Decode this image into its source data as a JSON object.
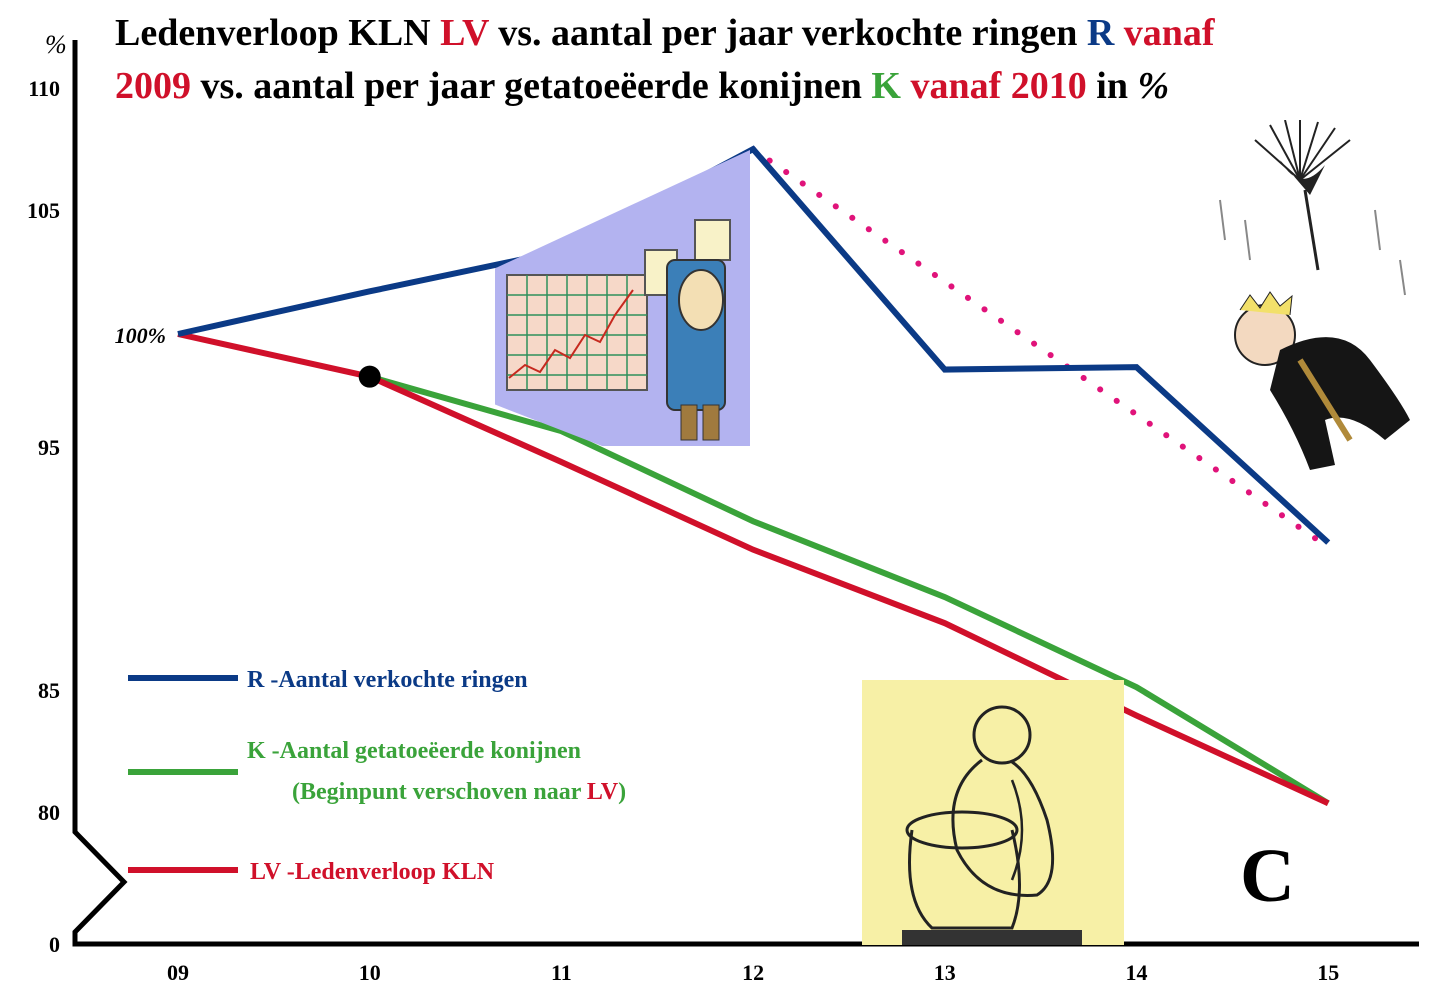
{
  "chart_data": {
    "type": "line",
    "title_line1": [
      {
        "text": "Ledenverloop KLN ",
        "color": "#000000"
      },
      {
        "text": "LV",
        "color": "#d0102a"
      },
      {
        "text": " vs. aantal per jaar verkochte ringen ",
        "color": "#000000"
      },
      {
        "text": "R",
        "color": "#0b3a86"
      },
      {
        "text": " vanaf",
        "color": "#d0102a"
      }
    ],
    "title_line2": [
      {
        "text": "2009",
        "color": "#d0102a"
      },
      {
        "text": " vs. aantal per jaar getatoeëerde konijnen ",
        "color": "#000000"
      },
      {
        "text": "K",
        "color": "#3aa33a"
      },
      {
        "text": " vanaf 2010",
        "color": "#d0102a"
      },
      {
        "text": " in ",
        "color": "#000000"
      },
      {
        "text": "%",
        "color": "#000000"
      }
    ],
    "y_unit": "%",
    "y_ticks": [
      "110",
      "105",
      "100%",
      "95",
      "85",
      "80",
      "0"
    ],
    "categories": [
      "09",
      "10",
      "11",
      "12",
      "13",
      "14",
      "15"
    ],
    "series": [
      {
        "name": "R -Aantal verkochte ringen",
        "color": "#0b3a86",
        "values": [
          100,
          101.8,
          103.5,
          107.8,
          98.5,
          98.6,
          91.2
        ]
      },
      {
        "name": "K -Aantal getatoeëerde konijnen",
        "color": "#3aa33a",
        "values": [
          null,
          98.2,
          95.9,
          92.1,
          88.9,
          85.1,
          80.2
        ]
      },
      {
        "name": "LV -Ledenverloop KLN",
        "color": "#d0102a",
        "values": [
          100,
          98.2,
          94.6,
          90.9,
          87.8,
          83.9,
          80.2
        ]
      }
    ],
    "trend": {
      "color": "#e0137a",
      "from": {
        "x": "12",
        "y": 107.8
      },
      "to": {
        "x": "15",
        "y": 91
      }
    },
    "marker": {
      "x": "10",
      "y": 98.2,
      "color": "#000000"
    },
    "legend": {
      "placement": "bottom-left",
      "items": [
        {
          "label": "R -Aantal verkochte ringen",
          "color": "#0b3a86"
        },
        {
          "label": "K -Aantal getatoeëerde konijnen",
          "color": "#3aa33a",
          "sub_parts": [
            {
              "text": "(Beginpunt verschoven naar ",
              "color": "#3aa33a"
            },
            {
              "text": "LV",
              "color": "#d0102a"
            },
            {
              "text": ")",
              "color": "#3aa33a"
            }
          ]
        },
        {
          "label": "LV -Ledenverloop KLN",
          "color": "#d0102a"
        }
      ]
    },
    "annotation": "C",
    "grid": false
  },
  "illustrations": [
    {
      "name": "cartoon-man-holding-chart-illustration"
    },
    {
      "name": "cartoon-thinker-illustration"
    },
    {
      "name": "cartoon-falling-man-umbrella-illustration"
    }
  ]
}
